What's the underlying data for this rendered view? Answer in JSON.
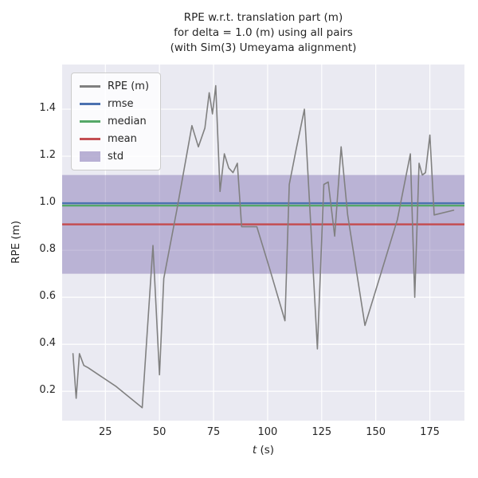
{
  "figure": {
    "title_lines": [
      "RPE w.r.t. translation part (m)",
      "for delta = 1.0 (m) using all pairs",
      "(with Sim(3) Umeyama alignment)"
    ],
    "ylabel": "RPE (m)",
    "xlabel_var": "t",
    "xlabel_unit": " (s)"
  },
  "colors": {
    "trajectory": "#808080",
    "rmse": "#4c72b0",
    "median": "#55a868",
    "mean": "#c44e52",
    "std_fill": "#8172b2",
    "axes_bg": "#eaeaf2",
    "grid": "#ffffff",
    "text": "#262626"
  },
  "legend": {
    "items": [
      {
        "label": "RPE (m)",
        "color_key": "trajectory",
        "type": "line"
      },
      {
        "label": "rmse",
        "color_key": "rmse",
        "type": "line"
      },
      {
        "label": "median",
        "color_key": "median",
        "type": "line"
      },
      {
        "label": "mean",
        "color_key": "mean",
        "type": "line"
      },
      {
        "label": "std",
        "color_key": "std_fill",
        "type": "patch"
      }
    ]
  },
  "chart_data": {
    "type": "line",
    "title": "RPE w.r.t. translation part (m) for delta = 1.0 (m) using all pairs (with Sim(3) Umeyama alignment)",
    "xlabel": "t (s)",
    "ylabel": "RPE (m)",
    "xlim": [
      5,
      191
    ],
    "ylim": [
      0.075,
      1.59
    ],
    "xticks": [
      25,
      50,
      75,
      100,
      125,
      150,
      175
    ],
    "yticks": [
      0.2,
      0.4,
      0.6,
      0.8,
      1.0,
      1.2,
      1.4
    ],
    "grid": true,
    "legend_position": "upper left",
    "stats": {
      "rmse": 1.0,
      "median": 0.99,
      "mean": 0.91,
      "std": 0.21
    },
    "std_band": [
      0.7,
      1.12
    ],
    "series": [
      {
        "name": "RPE (m)",
        "x": [
          10,
          11.5,
          13,
          15,
          17,
          30,
          42,
          47,
          50,
          52,
          58,
          65,
          68,
          71,
          73,
          74.5,
          76,
          78,
          80,
          82,
          84,
          86,
          88,
          95,
          101,
          108,
          110,
          113,
          117,
          120,
          123,
          126,
          128,
          131,
          134,
          137,
          145,
          149,
          160,
          166,
          168,
          170,
          171.5,
          173,
          175,
          177,
          186
        ],
        "y": [
          0.36,
          0.17,
          0.36,
          0.31,
          0.3,
          0.22,
          0.13,
          0.82,
          0.27,
          0.68,
          0.97,
          1.33,
          1.24,
          1.32,
          1.47,
          1.38,
          1.5,
          1.05,
          1.21,
          1.15,
          1.13,
          1.17,
          0.9,
          0.9,
          0.72,
          0.5,
          1.08,
          1.22,
          1.4,
          0.9,
          0.38,
          1.08,
          1.09,
          0.86,
          1.24,
          0.95,
          0.48,
          0.6,
          0.93,
          1.21,
          0.6,
          1.17,
          1.12,
          1.13,
          1.29,
          0.95,
          0.97
        ]
      }
    ]
  }
}
